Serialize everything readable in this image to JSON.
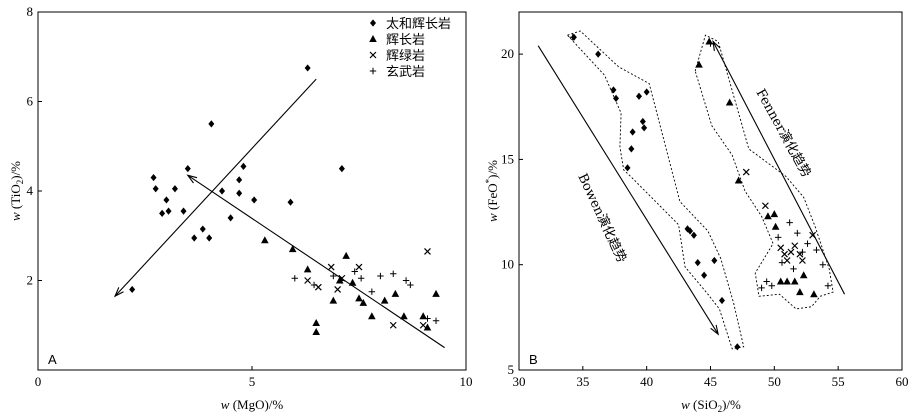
{
  "chart_data": [
    {
      "type": "scatter",
      "panel_label": "A",
      "xlabel": "w (MgO)/%",
      "ylabel": "w (TiO2)/%",
      "xlim": [
        0,
        10
      ],
      "ylim": [
        0,
        8
      ],
      "xticks": [
        0,
        5,
        10
      ],
      "yticks": [
        2,
        4,
        6,
        8
      ],
      "legend": {
        "placement": "top-right"
      },
      "series": [
        {
          "name": "太和辉长岩",
          "marker": "diamond",
          "points": [
            [
              2.2,
              1.8
            ],
            [
              2.7,
              4.3
            ],
            [
              2.75,
              4.05
            ],
            [
              2.9,
              3.5
            ],
            [
              3.0,
              3.8
            ],
            [
              3.05,
              3.55
            ],
            [
              3.2,
              4.05
            ],
            [
              3.4,
              3.55
            ],
            [
              3.5,
              4.5
            ],
            [
              3.65,
              2.95
            ],
            [
              3.85,
              3.15
            ],
            [
              4.0,
              2.95
            ],
            [
              4.05,
              5.5
            ],
            [
              4.3,
              4.0
            ],
            [
              4.5,
              3.4
            ],
            [
              4.7,
              4.25
            ],
            [
              4.8,
              4.55
            ],
            [
              4.7,
              3.95
            ],
            [
              5.05,
              3.8
            ],
            [
              5.9,
              3.75
            ],
            [
              6.3,
              6.75
            ],
            [
              7.1,
              4.5
            ]
          ]
        },
        {
          "name": "辉长岩",
          "marker": "triangle",
          "points": [
            [
              5.3,
              2.9
            ],
            [
              5.95,
              2.7
            ],
            [
              6.3,
              2.25
            ],
            [
              6.5,
              1.05
            ],
            [
              6.5,
              0.85
            ],
            [
              6.9,
              1.55
            ],
            [
              7.05,
              2.0
            ],
            [
              7.2,
              2.55
            ],
            [
              7.35,
              1.95
            ],
            [
              7.5,
              1.6
            ],
            [
              7.6,
              1.5
            ],
            [
              7.8,
              1.2
            ],
            [
              8.1,
              1.55
            ],
            [
              8.35,
              1.7
            ],
            [
              8.55,
              1.2
            ],
            [
              9.0,
              1.2
            ],
            [
              9.1,
              0.95
            ],
            [
              9.3,
              1.7
            ]
          ]
        },
        {
          "name": "辉绿岩",
          "marker": "x",
          "points": [
            [
              6.3,
              2.0
            ],
            [
              6.55,
              1.85
            ],
            [
              6.85,
              2.3
            ],
            [
              7.0,
              1.8
            ],
            [
              7.1,
              2.05
            ],
            [
              7.5,
              2.3
            ],
            [
              8.3,
              1.0
            ],
            [
              9.0,
              1.0
            ],
            [
              9.1,
              2.65
            ]
          ]
        },
        {
          "name": "玄武岩",
          "marker": "plus",
          "points": [
            [
              6.0,
              2.05
            ],
            [
              6.45,
              1.9
            ],
            [
              6.9,
              2.1
            ],
            [
              7.1,
              2.0
            ],
            [
              7.4,
              2.2
            ],
            [
              7.55,
              2.05
            ],
            [
              7.8,
              1.75
            ],
            [
              8.0,
              2.1
            ],
            [
              8.3,
              2.15
            ],
            [
              8.6,
              2.0
            ],
            [
              8.7,
              1.9
            ],
            [
              9.1,
              1.15
            ],
            [
              9.3,
              1.1
            ]
          ]
        }
      ],
      "arrows": [
        {
          "from": [
            6.5,
            6.5
          ],
          "to": [
            1.8,
            1.65
          ],
          "head": "end"
        },
        {
          "from": [
            9.5,
            0.5
          ],
          "to": [
            3.5,
            4.35
          ],
          "head": "end"
        }
      ]
    },
    {
      "type": "scatter",
      "panel_label": "B",
      "xlabel": "w (SiO2)/%",
      "ylabel": "w (FeO*)/%",
      "xlim": [
        30,
        60
      ],
      "ylim": [
        5,
        22
      ],
      "xticks": [
        30,
        35,
        40,
        45,
        50,
        55,
        60
      ],
      "yticks": [
        5,
        10,
        15,
        20
      ],
      "annotations": [
        "Bowen演化趋势",
        "Fenner演化趋势"
      ],
      "series": [
        {
          "name": "太和辉长岩",
          "marker": "diamond",
          "points": [
            [
              34.3,
              20.8
            ],
            [
              36.2,
              20.0
            ],
            [
              37.4,
              18.3
            ],
            [
              37.6,
              17.9
            ],
            [
              38.5,
              14.6
            ],
            [
              38.8,
              15.5
            ],
            [
              38.9,
              16.3
            ],
            [
              39.4,
              18.0
            ],
            [
              39.7,
              16.8
            ],
            [
              39.8,
              16.5
            ],
            [
              40.0,
              18.2
            ],
            [
              43.2,
              11.7
            ],
            [
              43.4,
              11.6
            ],
            [
              43.7,
              11.4
            ],
            [
              44.0,
              10.1
            ],
            [
              44.5,
              9.5
            ],
            [
              45.3,
              10.2
            ],
            [
              45.9,
              8.3
            ],
            [
              47.1,
              6.1
            ]
          ]
        },
        {
          "name": "辉长岩",
          "marker": "triangle",
          "points": [
            [
              44.1,
              19.5
            ],
            [
              44.9,
              20.6
            ],
            [
              46.5,
              17.7
            ],
            [
              47.2,
              14.0
            ],
            [
              49.5,
              12.3
            ],
            [
              50.0,
              12.4
            ],
            [
              50.1,
              11.8
            ],
            [
              50.5,
              9.2
            ],
            [
              51.0,
              9.2
            ],
            [
              51.6,
              9.2
            ],
            [
              52.0,
              8.7
            ],
            [
              52.3,
              9.5
            ],
            [
              53.1,
              8.6
            ]
          ]
        },
        {
          "name": "辉绿岩",
          "marker": "x",
          "points": [
            [
              47.8,
              14.4
            ],
            [
              49.3,
              12.8
            ],
            [
              50.5,
              10.8
            ],
            [
              50.8,
              10.5
            ],
            [
              51.0,
              10.2
            ],
            [
              51.3,
              10.6
            ],
            [
              51.6,
              10.9
            ],
            [
              52.0,
              10.5
            ],
            [
              52.2,
              10.2
            ],
            [
              53.0,
              11.4
            ]
          ]
        },
        {
          "name": "玄武岩",
          "marker": "plus",
          "points": [
            [
              34.2,
              20.8
            ],
            [
              45.0,
              20.5
            ],
            [
              49.0,
              8.9
            ],
            [
              49.4,
              9.2
            ],
            [
              49.8,
              9.0
            ],
            [
              50.3,
              11.3
            ],
            [
              50.6,
              10.1
            ],
            [
              51.2,
              12.0
            ],
            [
              51.5,
              9.8
            ],
            [
              51.8,
              11.5
            ],
            [
              52.2,
              10.6
            ],
            [
              52.6,
              11.0
            ],
            [
              53.3,
              10.7
            ],
            [
              53.8,
              10.0
            ],
            [
              54.2,
              9.0
            ]
          ]
        }
      ],
      "lines": [
        {
          "from": [
            31.5,
            20.4
          ],
          "to": [
            45.6,
            6.7
          ],
          "head": "end"
        },
        {
          "from": [
            55.5,
            8.6
          ],
          "to": [
            45.2,
            20.6
          ],
          "head": "end"
        }
      ],
      "envelopes": [
        [
          [
            33.8,
            20.9
          ],
          [
            34.8,
            21.1
          ],
          [
            37.8,
            19.4
          ],
          [
            40.2,
            18.6
          ],
          [
            42.6,
            13.0
          ],
          [
            44.8,
            11.6
          ],
          [
            45.8,
            10.3
          ],
          [
            46.8,
            8.2
          ],
          [
            47.6,
            6.1
          ],
          [
            46.7,
            6.0
          ],
          [
            45.7,
            7.9
          ],
          [
            44.8,
            8.6
          ],
          [
            43.0,
            9.9
          ],
          [
            42.5,
            11.9
          ],
          [
            38.9,
            14.1
          ],
          [
            38.2,
            14.5
          ],
          [
            37.9,
            15.6
          ],
          [
            38.0,
            17.2
          ],
          [
            36.7,
            19.0
          ]
        ],
        [
          [
            43.8,
            19.2
          ],
          [
            44.6,
            20.9
          ],
          [
            45.6,
            20.6
          ],
          [
            48.0,
            15.5
          ],
          [
            50.9,
            14.2
          ],
          [
            52.3,
            13.2
          ],
          [
            53.2,
            11.8
          ],
          [
            54.3,
            9.8
          ],
          [
            54.6,
            8.7
          ],
          [
            53.6,
            8.5
          ],
          [
            52.9,
            8.0
          ],
          [
            51.7,
            7.9
          ],
          [
            50.4,
            8.6
          ],
          [
            48.8,
            8.5
          ],
          [
            48.5,
            9.6
          ],
          [
            49.9,
            11.0
          ],
          [
            49.0,
            12.3
          ],
          [
            47.7,
            13.5
          ],
          [
            46.7,
            15.2
          ],
          [
            45.1,
            16.6
          ]
        ]
      ]
    }
  ]
}
